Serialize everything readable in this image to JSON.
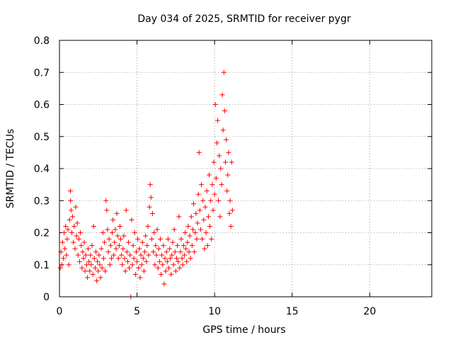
{
  "chart_data": {
    "type": "scatter",
    "title": "Day 034 of 2025, SRMTID for receiver pygr",
    "xlabel": "GPS time / hours",
    "ylabel": "SRMTID / TECUs",
    "xlim": [
      0,
      24
    ],
    "ylim": [
      0,
      0.8
    ],
    "x_ticks": [
      0,
      5,
      10,
      15,
      20
    ],
    "x_tick_labels": [
      "0",
      "5",
      "10",
      "15",
      "20"
    ],
    "y_ticks": [
      0,
      0.1,
      0.2,
      0.3,
      0.4,
      0.5,
      0.6,
      0.7,
      0.8
    ],
    "y_tick_labels": [
      "0",
      "0.1",
      "0.2",
      "0.3",
      "0.4",
      "0.5",
      "0.6",
      "0.7",
      "0.8"
    ],
    "grid": true,
    "marker": "plus",
    "color": "#ff0000",
    "series": [
      {
        "name": "SRMTID",
        "points": [
          [
            0.05,
            0.09
          ],
          [
            0.1,
            0.14
          ],
          [
            0.15,
            0.1
          ],
          [
            0.2,
            0.17
          ],
          [
            0.25,
            0.12
          ],
          [
            0.3,
            0.2
          ],
          [
            0.35,
            0.15
          ],
          [
            0.4,
            0.22
          ],
          [
            0.45,
            0.13
          ],
          [
            0.5,
            0.18
          ],
          [
            0.55,
            0.21
          ],
          [
            0.6,
            0.1
          ],
          [
            0.65,
            0.24
          ],
          [
            0.7,
            0.33
          ],
          [
            0.72,
            0.3
          ],
          [
            0.75,
            0.27
          ],
          [
            0.8,
            0.2
          ],
          [
            0.85,
            0.25
          ],
          [
            0.9,
            0.17
          ],
          [
            0.95,
            0.22
          ],
          [
            1.0,
            0.15
          ],
          [
            1.05,
            0.28
          ],
          [
            1.1,
            0.19
          ],
          [
            1.15,
            0.23
          ],
          [
            1.2,
            0.13
          ],
          [
            1.25,
            0.18
          ],
          [
            1.3,
            0.11
          ],
          [
            1.35,
            0.2
          ],
          [
            1.4,
            0.16
          ],
          [
            1.45,
            0.09
          ],
          [
            1.5,
            0.14
          ],
          [
            1.55,
            0.12
          ],
          [
            1.6,
            0.17
          ],
          [
            1.65,
            0.08
          ],
          [
            1.7,
            0.13
          ],
          [
            1.75,
            0.1
          ],
          [
            1.8,
            0.06
          ],
          [
            1.85,
            0.15
          ],
          [
            1.9,
            0.11
          ],
          [
            1.95,
            0.08
          ],
          [
            2.0,
            0.13
          ],
          [
            2.05,
            0.1
          ],
          [
            2.1,
            0.16
          ],
          [
            2.15,
            0.07
          ],
          [
            2.2,
            0.22
          ],
          [
            2.25,
            0.12
          ],
          [
            2.3,
            0.09
          ],
          [
            2.35,
            0.14
          ],
          [
            2.4,
            0.05
          ],
          [
            2.45,
            0.11
          ],
          [
            2.5,
            0.08
          ],
          [
            2.55,
            0.13
          ],
          [
            2.6,
            0.1
          ],
          [
            2.65,
            0.06
          ],
          [
            2.7,
            0.15
          ],
          [
            2.75,
            0.09
          ],
          [
            2.8,
            0.2
          ],
          [
            2.85,
            0.12
          ],
          [
            2.9,
            0.17
          ],
          [
            2.95,
            0.08
          ],
          [
            3.0,
            0.3
          ],
          [
            3.05,
            0.27
          ],
          [
            3.1,
            0.21
          ],
          [
            3.15,
            0.14
          ],
          [
            3.2,
            0.18
          ],
          [
            3.25,
            0.1
          ],
          [
            3.3,
            0.16
          ],
          [
            3.35,
            0.12
          ],
          [
            3.4,
            0.2
          ],
          [
            3.45,
            0.24
          ],
          [
            3.5,
            0.13
          ],
          [
            3.55,
            0.17
          ],
          [
            3.6,
            0.21
          ],
          [
            3.65,
            0.15
          ],
          [
            3.7,
            0.26
          ],
          [
            3.75,
            0.19
          ],
          [
            3.8,
            0.12
          ],
          [
            3.85,
            0.16
          ],
          [
            3.9,
            0.22
          ],
          [
            3.95,
            0.18
          ],
          [
            4.0,
            0.13
          ],
          [
            4.05,
            0.1
          ],
          [
            4.1,
            0.15
          ],
          [
            4.15,
            0.19
          ],
          [
            4.2,
            0.12
          ],
          [
            4.25,
            0.08
          ],
          [
            4.3,
            0.27
          ],
          [
            4.35,
            0.14
          ],
          [
            4.4,
            0.11
          ],
          [
            4.45,
            0.17
          ],
          [
            4.5,
            0.09
          ],
          [
            4.55,
            0.13
          ],
          [
            4.6,
            0.0
          ],
          [
            4.65,
            0.24
          ],
          [
            4.7,
            0.1
          ],
          [
            4.75,
            0.16
          ],
          [
            4.8,
            0.12
          ],
          [
            4.85,
            0.2
          ],
          [
            4.9,
            0.07
          ],
          [
            4.95,
            0.14
          ],
          [
            5.0,
            0.11
          ],
          [
            5.05,
            0.18
          ],
          [
            5.1,
            0.09
          ],
          [
            5.15,
            0.15
          ],
          [
            5.2,
            0.06
          ],
          [
            5.25,
            0.13
          ],
          [
            5.3,
            0.1
          ],
          [
            5.35,
            0.17
          ],
          [
            5.4,
            0.12
          ],
          [
            5.45,
            0.08
          ],
          [
            5.5,
            0.14
          ],
          [
            5.55,
            0.19
          ],
          [
            5.6,
            0.11
          ],
          [
            5.65,
            0.16
          ],
          [
            5.7,
            0.22
          ],
          [
            5.75,
            0.13
          ],
          [
            5.8,
            0.28
          ],
          [
            5.85,
            0.35
          ],
          [
            5.9,
            0.31
          ],
          [
            5.95,
            0.18
          ],
          [
            6.0,
            0.26
          ],
          [
            6.05,
            0.14
          ],
          [
            6.1,
            0.2
          ],
          [
            6.15,
            0.1
          ],
          [
            6.2,
            0.16
          ],
          [
            6.25,
            0.13
          ],
          [
            6.3,
            0.21
          ],
          [
            6.35,
            0.09
          ],
          [
            6.4,
            0.15
          ],
          [
            6.45,
            0.11
          ],
          [
            6.5,
            0.18
          ],
          [
            6.55,
            0.07
          ],
          [
            6.6,
            0.13
          ],
          [
            6.65,
            0.1
          ],
          [
            6.7,
            0.16
          ],
          [
            6.75,
            0.04
          ],
          [
            6.8,
            0.12
          ],
          [
            6.85,
            0.08
          ],
          [
            6.9,
            0.14
          ],
          [
            6.95,
            0.11
          ],
          [
            7.0,
            0.18
          ],
          [
            7.05,
            0.09
          ],
          [
            7.1,
            0.15
          ],
          [
            7.15,
            0.12
          ],
          [
            7.2,
            0.07
          ],
          [
            7.25,
            0.13
          ],
          [
            7.3,
            0.17
          ],
          [
            7.35,
            0.1
          ],
          [
            7.4,
            0.21
          ],
          [
            7.45,
            0.14
          ],
          [
            7.5,
            0.08
          ],
          [
            7.55,
            0.12
          ],
          [
            7.6,
            0.16
          ],
          [
            7.65,
            0.11
          ],
          [
            7.7,
            0.25
          ],
          [
            7.75,
            0.09
          ],
          [
            7.8,
            0.14
          ],
          [
            7.85,
            0.18
          ],
          [
            7.9,
            0.12
          ],
          [
            7.95,
            0.1
          ],
          [
            8.0,
            0.16
          ],
          [
            8.05,
            0.13
          ],
          [
            8.1,
            0.2
          ],
          [
            8.15,
            0.15
          ],
          [
            8.2,
            0.11
          ],
          [
            8.25,
            0.17
          ],
          [
            8.3,
            0.22
          ],
          [
            8.35,
            0.14
          ],
          [
            8.4,
            0.19
          ],
          [
            8.45,
            0.12
          ],
          [
            8.5,
            0.25
          ],
          [
            8.55,
            0.16
          ],
          [
            8.6,
            0.21
          ],
          [
            8.65,
            0.29
          ],
          [
            8.7,
            0.14
          ],
          [
            8.75,
            0.2
          ],
          [
            8.8,
            0.26
          ],
          [
            8.85,
            0.18
          ],
          [
            8.9,
            0.23
          ],
          [
            8.95,
            0.32
          ],
          [
            9.0,
            0.45
          ],
          [
            9.05,
            0.27
          ],
          [
            9.1,
            0.21
          ],
          [
            9.15,
            0.35
          ],
          [
            9.2,
            0.18
          ],
          [
            9.25,
            0.3
          ],
          [
            9.3,
            0.24
          ],
          [
            9.35,
            0.15
          ],
          [
            9.4,
            0.28
          ],
          [
            9.45,
            0.2
          ],
          [
            9.5,
            0.33
          ],
          [
            9.55,
            0.16
          ],
          [
            9.6,
            0.25
          ],
          [
            9.65,
            0.38
          ],
          [
            9.7,
            0.22
          ],
          [
            9.75,
            0.3
          ],
          [
            9.8,
            0.18
          ],
          [
            9.85,
            0.35
          ],
          [
            9.9,
            0.27
          ],
          [
            9.95,
            0.42
          ],
          [
            10.0,
            0.32
          ],
          [
            10.05,
            0.6
          ],
          [
            10.1,
            0.37
          ],
          [
            10.15,
            0.48
          ],
          [
            10.2,
            0.55
          ],
          [
            10.25,
            0.3
          ],
          [
            10.3,
            0.44
          ],
          [
            10.35,
            0.25
          ],
          [
            10.4,
            0.4
          ],
          [
            10.45,
            0.35
          ],
          [
            10.5,
            0.63
          ],
          [
            10.55,
            0.52
          ],
          [
            10.6,
            0.7
          ],
          [
            10.65,
            0.58
          ],
          [
            10.7,
            0.42
          ],
          [
            10.75,
            0.49
          ],
          [
            10.8,
            0.33
          ],
          [
            10.85,
            0.38
          ],
          [
            10.9,
            0.45
          ],
          [
            10.95,
            0.26
          ],
          [
            11.0,
            0.3
          ],
          [
            11.05,
            0.22
          ],
          [
            11.1,
            0.42
          ],
          [
            11.15,
            0.27
          ]
        ]
      }
    ]
  }
}
